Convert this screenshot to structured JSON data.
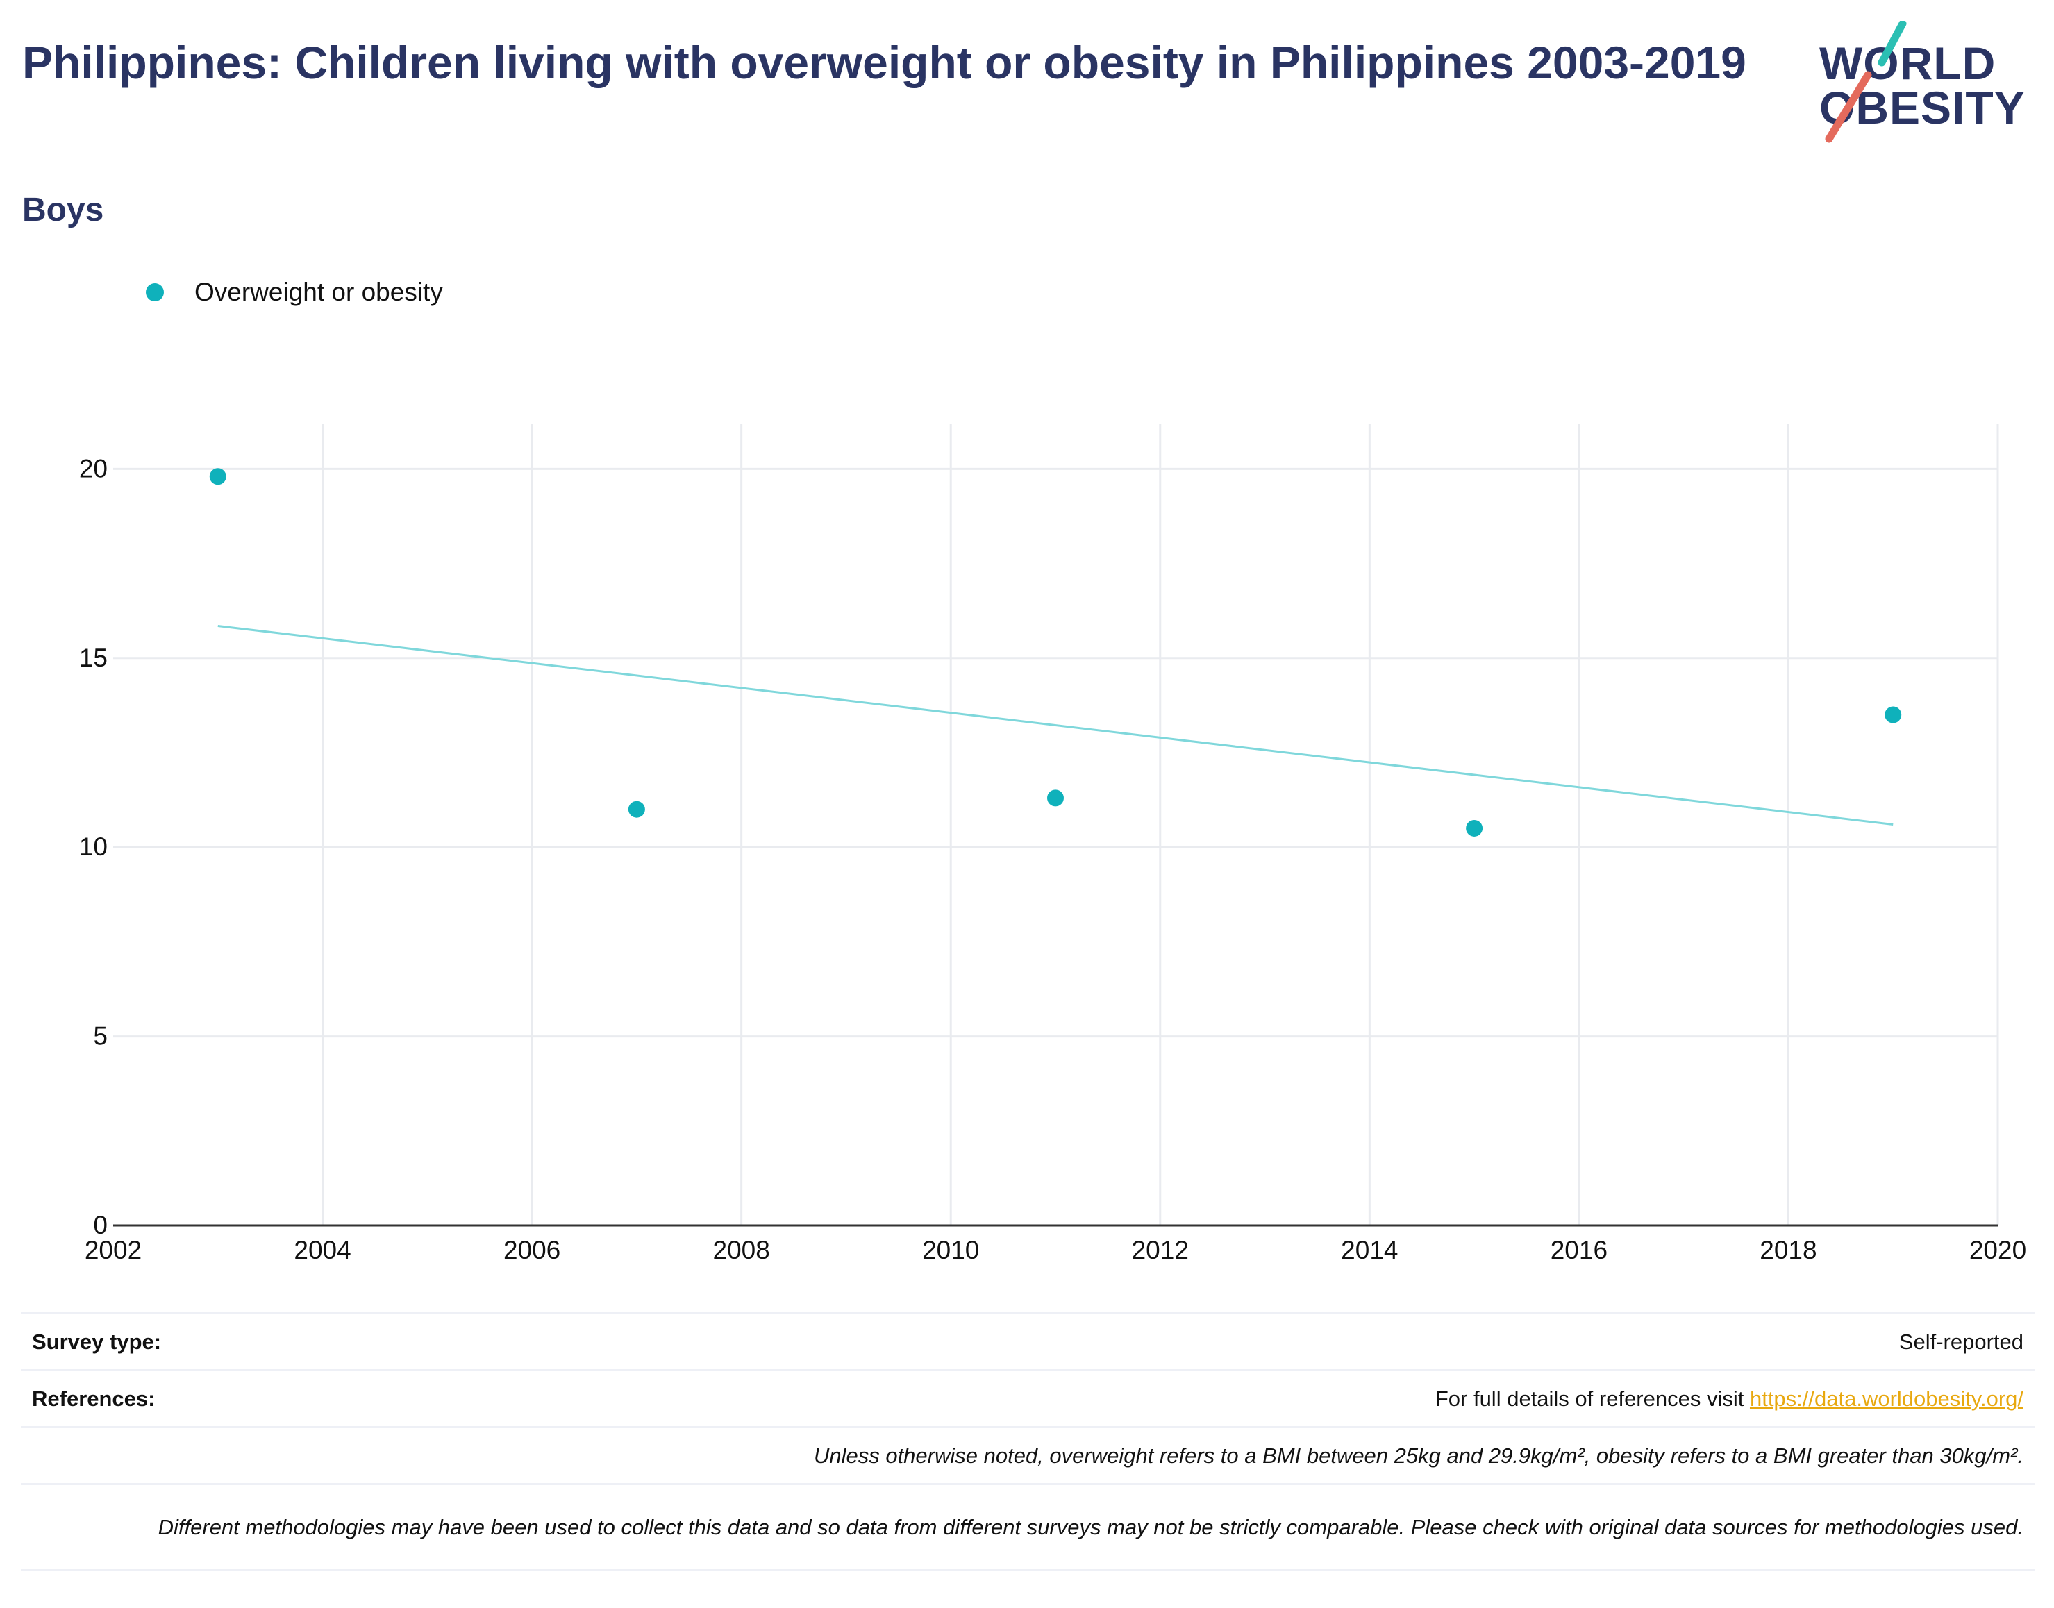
{
  "header": {
    "title": "Philippines: Children living with overweight or obesity in Philippines 2003-2019",
    "subtitle": "Boys"
  },
  "logo": {
    "line1": "WORLD",
    "line2": "OBESITY"
  },
  "legend": {
    "items": [
      {
        "label": "Overweight or obesity",
        "color": "#0fb1bb"
      }
    ]
  },
  "colors": {
    "points": "#0fb1bb",
    "trend": "#7fd7db",
    "grid": "#e9ebef",
    "axis": "#333333",
    "accent_teal": "#2bbfb3",
    "accent_red": "#e46a5c"
  },
  "chart_data": {
    "type": "scatter",
    "title": "Philippines: Children living with overweight or obesity in Philippines 2003-2019",
    "subtitle": "Boys",
    "xlabel": "",
    "ylabel": "",
    "xlim": [
      2002,
      2020
    ],
    "ylim": [
      0,
      21.2
    ],
    "xticks": [
      2002,
      2004,
      2006,
      2008,
      2010,
      2012,
      2014,
      2016,
      2018,
      2020
    ],
    "yticks": [
      0,
      5,
      10,
      15,
      20
    ],
    "grid": true,
    "legend_position": "top-left",
    "series": [
      {
        "name": "Overweight or obesity",
        "color": "#0fb1bb",
        "x": [
          2003,
          2007,
          2011,
          2015,
          2019
        ],
        "y": [
          19.8,
          11.0,
          11.3,
          10.5,
          13.5
        ]
      }
    ],
    "trendline": {
      "x": [
        2003,
        2019
      ],
      "y": [
        15.85,
        10.6
      ]
    }
  },
  "footer": {
    "survey_type_label": "Survey type:",
    "survey_type_value": "Self-reported",
    "references_label": "References:",
    "references_text": "For full details of references visit ",
    "references_link": "https://data.worldobesity.org/",
    "note_bmi": "Unless otherwise noted, overweight refers to a BMI between 25kg and 29.9kg/m², obesity refers to a BMI greater than 30kg/m².",
    "note_methods": "Different methodologies may have been used to collect this data and so data from different surveys may not be strictly comparable. Please check with original data sources for methodologies used."
  }
}
